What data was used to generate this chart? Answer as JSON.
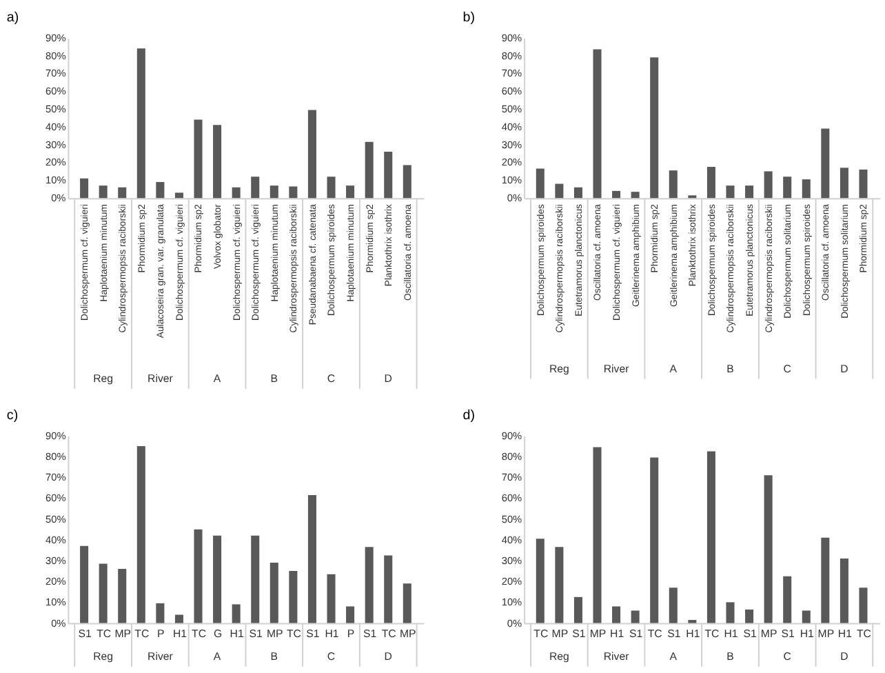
{
  "chart_data": [
    {
      "type": "bar",
      "title": "a)",
      "categories": [
        "Dolichospermum cf. viguieri",
        "Haplotaenium minutum",
        "Cylindrospermopsis raciborskii",
        "Phormidium sp2",
        "Aulacoseira gran. var. granulata",
        "Dolichospermum cf. viguieri",
        "Phormidium sp2",
        "Volvox globator",
        "Dolichospermum cf. viguieri",
        "Dolichospermum cf. viguieri",
        "Haplotaenium minutum",
        "Cylindrospermopsis raciborskii",
        "Pseudanabaena cf. catenata",
        "Dolichospermum spiroides",
        "Haplotaenium minutum",
        "Phormidium sp2",
        "Planktothrix isothrix",
        "Oscillatoria cf. amoena"
      ],
      "values": [
        11,
        7,
        6,
        84,
        9,
        3,
        44,
        41,
        6,
        12,
        7,
        6.5,
        49.5,
        12,
        7,
        31.5,
        26,
        18.5
      ],
      "color": "#595959",
      "ylim": [
        0,
        90
      ],
      "yticks": [
        {
          "value": 0,
          "label": "0%"
        },
        {
          "value": 10,
          "label": "10%"
        },
        {
          "value": 20,
          "label": "20%"
        },
        {
          "value": 30,
          "label": "30%"
        },
        {
          "value": 40,
          "label": "40%"
        },
        {
          "value": 50,
          "label": "50%"
        },
        {
          "value": 60,
          "label": "60%"
        },
        {
          "value": 70,
          "label": "70%"
        },
        {
          "value": 80,
          "label": "80%"
        },
        {
          "value": 90,
          "label": "90%"
        }
      ],
      "annotations": [
        "Reg",
        "River",
        "A",
        "B",
        "C",
        "D"
      ]
    },
    {
      "type": "bar",
      "title": "b)",
      "categories": [
        "Dolichospermum spiroides",
        "Cylindrospermopsis raciborskii",
        "Eutetramorus planctonicus",
        "Oscillatoria cf. amoena",
        "Dolichospermum cf. viguieri",
        "Geitlerinema amphibium",
        "Phormidium sp2",
        "Geitlerinema amphibium",
        "Planktothrix isothrix",
        "Dolichospermum spiroides",
        "Cylindrospermopsis raciborskii",
        "Eutetramorus planctonicus",
        "Cylindrospermopsis raciborskii",
        "Dolichospermum solitarium",
        "Dolichospermum spiroides",
        "Oscillatoria cf. amoena",
        "Dolichospermum solitarium",
        "Phormidium sp2"
      ],
      "values": [
        16.5,
        8,
        6,
        83.5,
        4,
        3.5,
        79,
        15.5,
        1.5,
        17.5,
        7,
        7,
        15,
        12,
        10.5,
        39,
        17,
        16
      ],
      "color": "#595959",
      "ylim": [
        0,
        90
      ],
      "yticks": [
        {
          "value": 0,
          "label": "0%"
        },
        {
          "value": 10,
          "label": "10%"
        },
        {
          "value": 20,
          "label": "20%"
        },
        {
          "value": 30,
          "label": "30%"
        },
        {
          "value": 40,
          "label": "40%"
        },
        {
          "value": 50,
          "label": "50%"
        },
        {
          "value": 60,
          "label": "60%"
        },
        {
          "value": 70,
          "label": "70%"
        },
        {
          "value": 80,
          "label": "80%"
        },
        {
          "value": 90,
          "label": "90%"
        }
      ],
      "annotations": [
        "Reg",
        "River",
        "A",
        "B",
        "C",
        "D"
      ]
    },
    {
      "type": "bar",
      "title": "c)",
      "categories": [
        "S1",
        "TC",
        "MP",
        "TC",
        "P",
        "H1",
        "TC",
        "G",
        "H1",
        "S1",
        "MP",
        "TC",
        "S1",
        "H1",
        "P",
        "S1",
        "TC",
        "MP"
      ],
      "values": [
        37,
        28.5,
        26,
        85,
        9.5,
        4,
        45,
        42,
        9,
        42,
        29,
        25,
        61.5,
        23.5,
        8,
        36.5,
        32.5,
        19
      ],
      "color": "#595959",
      "ylim": [
        0,
        90
      ],
      "yticks": [
        {
          "value": 0,
          "label": "0%"
        },
        {
          "value": 10,
          "label": "10%"
        },
        {
          "value": 20,
          "label": "20%"
        },
        {
          "value": 30,
          "label": "30%"
        },
        {
          "value": 40,
          "label": "40%"
        },
        {
          "value": 50,
          "label": "50%"
        },
        {
          "value": 60,
          "label": "60%"
        },
        {
          "value": 70,
          "label": "70%"
        },
        {
          "value": 80,
          "label": "80%"
        },
        {
          "value": 90,
          "label": "90%"
        }
      ],
      "annotations": [
        "Reg",
        "River",
        "A",
        "B",
        "C",
        "D"
      ]
    },
    {
      "type": "bar",
      "title": "d)",
      "categories": [
        "TC",
        "MP",
        "S1",
        "MP",
        "H1",
        "S1",
        "TC",
        "S1",
        "H1",
        "TC",
        "H1",
        "S1",
        "MP",
        "S1",
        "H1",
        "MP",
        "H1",
        "TC"
      ],
      "values": [
        40.5,
        36.5,
        12.5,
        84.5,
        8,
        6,
        79.5,
        17,
        1.5,
        82.5,
        10,
        6.5,
        71,
        22.5,
        6,
        41,
        31,
        17
      ],
      "color": "#595959",
      "ylim": [
        0,
        90
      ],
      "yticks": [
        {
          "value": 0,
          "label": "0%"
        },
        {
          "value": 10,
          "label": "10%"
        },
        {
          "value": 20,
          "label": "20%"
        },
        {
          "value": 30,
          "label": "30%"
        },
        {
          "value": 40,
          "label": "40%"
        },
        {
          "value": 50,
          "label": "50%"
        },
        {
          "value": 60,
          "label": "60%"
        },
        {
          "value": 70,
          "label": "70%"
        },
        {
          "value": 80,
          "label": "80%"
        },
        {
          "value": 90,
          "label": "90%"
        }
      ],
      "annotations": [
        "Reg",
        "River",
        "A",
        "B",
        "C",
        "D"
      ]
    }
  ]
}
